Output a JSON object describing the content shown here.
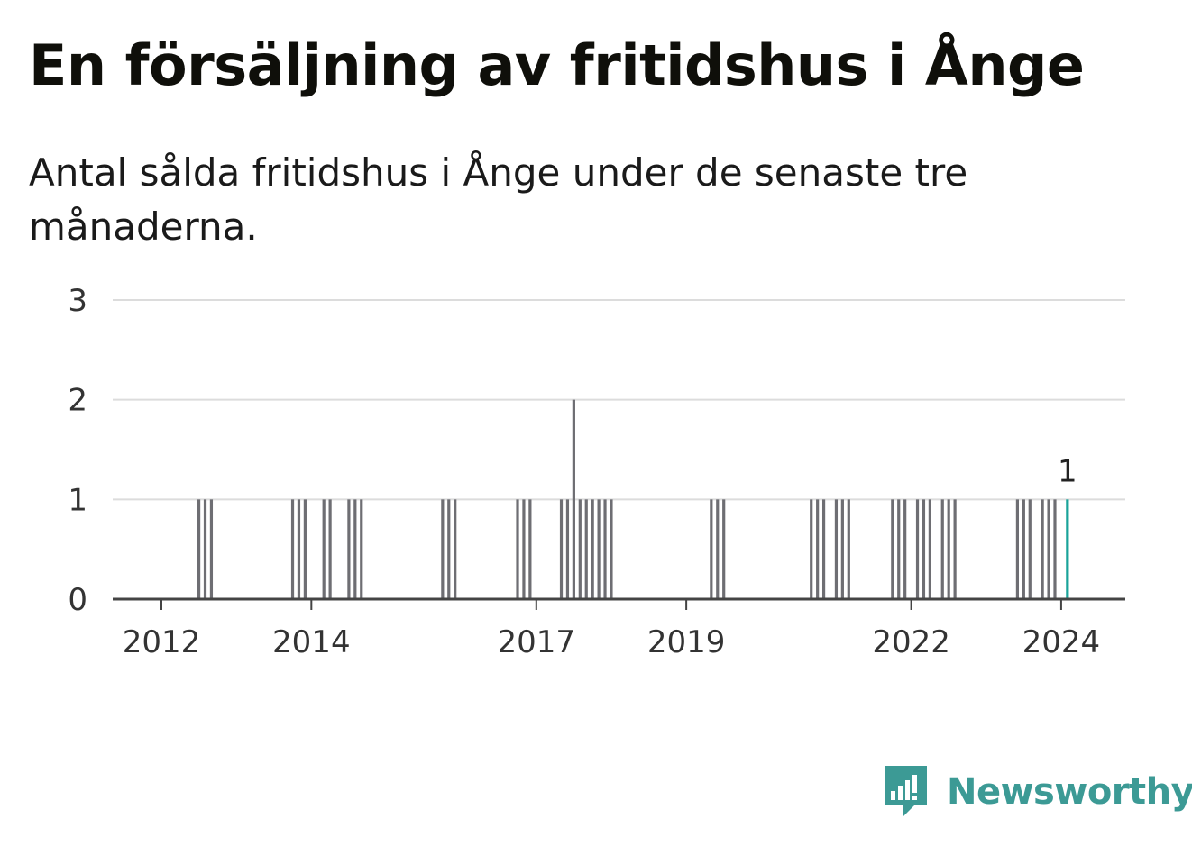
{
  "brand": {
    "name": "Newsworthy",
    "color": "#3c9a95",
    "icon": "newsworthy-logo-icon"
  },
  "chart_data": {
    "type": "bar",
    "title": "En försäljning av fritidshus i Ånge",
    "subtitle": "Antal sålda fritidshus i Ånge under de senaste tre månaderna.",
    "xlabel": "",
    "ylabel": "",
    "ylim": [
      0,
      3
    ],
    "yticks": [
      0,
      1,
      2,
      3
    ],
    "xticks": [
      "2012",
      "2014",
      "2017",
      "2019",
      "2022",
      "2024"
    ],
    "grid": true,
    "bar_color": "#6e6e73",
    "highlight_color": "#1aa39a",
    "highlight_label": "1",
    "series": [
      {
        "values": [
          {
            "date": "2012-07",
            "value": 1
          },
          {
            "date": "2012-08",
            "value": 1
          },
          {
            "date": "2012-09",
            "value": 1
          },
          {
            "date": "2013-10",
            "value": 1
          },
          {
            "date": "2013-11",
            "value": 1
          },
          {
            "date": "2013-12",
            "value": 1
          },
          {
            "date": "2014-03",
            "value": 1
          },
          {
            "date": "2014-04",
            "value": 1
          },
          {
            "date": "2014-07",
            "value": 1
          },
          {
            "date": "2014-08",
            "value": 1
          },
          {
            "date": "2014-09",
            "value": 1
          },
          {
            "date": "2015-10",
            "value": 1
          },
          {
            "date": "2015-11",
            "value": 1
          },
          {
            "date": "2015-12",
            "value": 1
          },
          {
            "date": "2016-10",
            "value": 1
          },
          {
            "date": "2016-11",
            "value": 1
          },
          {
            "date": "2016-12",
            "value": 1
          },
          {
            "date": "2017-05",
            "value": 1
          },
          {
            "date": "2017-06",
            "value": 1
          },
          {
            "date": "2017-07",
            "value": 2
          },
          {
            "date": "2017-08",
            "value": 1
          },
          {
            "date": "2017-09",
            "value": 1
          },
          {
            "date": "2017-10",
            "value": 1
          },
          {
            "date": "2017-11",
            "value": 1
          },
          {
            "date": "2017-12",
            "value": 1
          },
          {
            "date": "2018-01",
            "value": 1
          },
          {
            "date": "2019-05",
            "value": 1
          },
          {
            "date": "2019-06",
            "value": 1
          },
          {
            "date": "2019-07",
            "value": 1
          },
          {
            "date": "2020-09",
            "value": 1
          },
          {
            "date": "2020-10",
            "value": 1
          },
          {
            "date": "2020-11",
            "value": 1
          },
          {
            "date": "2021-01",
            "value": 1
          },
          {
            "date": "2021-02",
            "value": 1
          },
          {
            "date": "2021-03",
            "value": 1
          },
          {
            "date": "2021-10",
            "value": 1
          },
          {
            "date": "2021-11",
            "value": 1
          },
          {
            "date": "2021-12",
            "value": 1
          },
          {
            "date": "2022-02",
            "value": 1
          },
          {
            "date": "2022-03",
            "value": 1
          },
          {
            "date": "2022-04",
            "value": 1
          },
          {
            "date": "2022-06",
            "value": 1
          },
          {
            "date": "2022-07",
            "value": 1
          },
          {
            "date": "2022-08",
            "value": 1
          },
          {
            "date": "2023-06",
            "value": 1
          },
          {
            "date": "2023-07",
            "value": 1
          },
          {
            "date": "2023-08",
            "value": 1
          },
          {
            "date": "2023-10",
            "value": 1
          },
          {
            "date": "2023-11",
            "value": 1
          },
          {
            "date": "2023-12",
            "value": 1
          },
          {
            "date": "2024-02",
            "value": 1,
            "highlight": true
          }
        ]
      }
    ]
  }
}
